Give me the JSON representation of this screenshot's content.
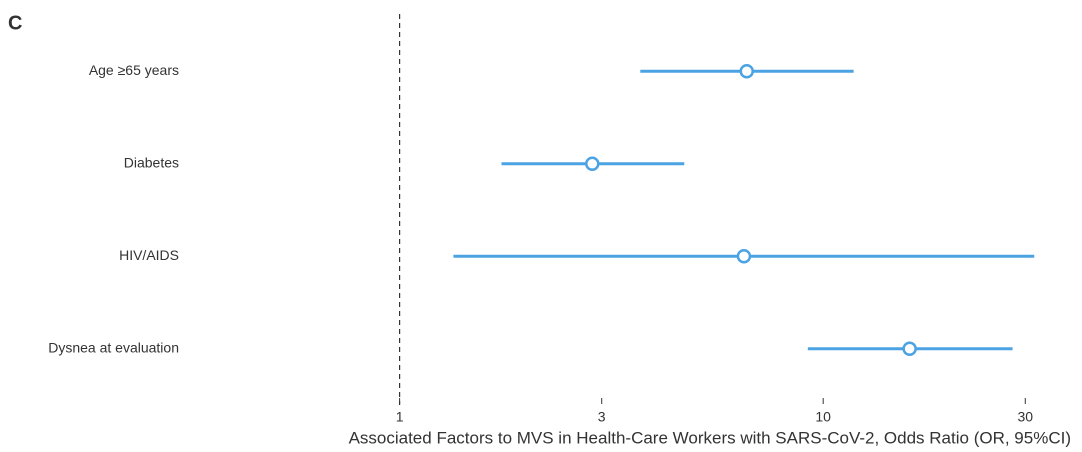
{
  "chart_data": {
    "type": "forest",
    "panel_label": "C",
    "xlabel": "Associated Factors to MVS in Health-Care Workers with SARS-CoV-2, Odds Ratio (OR, 95%CI)",
    "categories": [
      "Age ≥65 years",
      "Diabetes",
      "HIV/AIDS",
      "Dysnea at evaluation"
    ],
    "values": [
      6.6,
      2.85,
      6.5,
      16
    ],
    "lower": [
      3.7,
      1.74,
      1.34,
      9.2
    ],
    "upper": [
      11.8,
      4.7,
      31.5,
      28
    ],
    "color": "#4ba3e3",
    "xscale": "log",
    "xlim": [
      0.32,
      32.5
    ],
    "xticks": [
      1,
      3,
      10,
      30
    ],
    "ref_line": 1
  }
}
